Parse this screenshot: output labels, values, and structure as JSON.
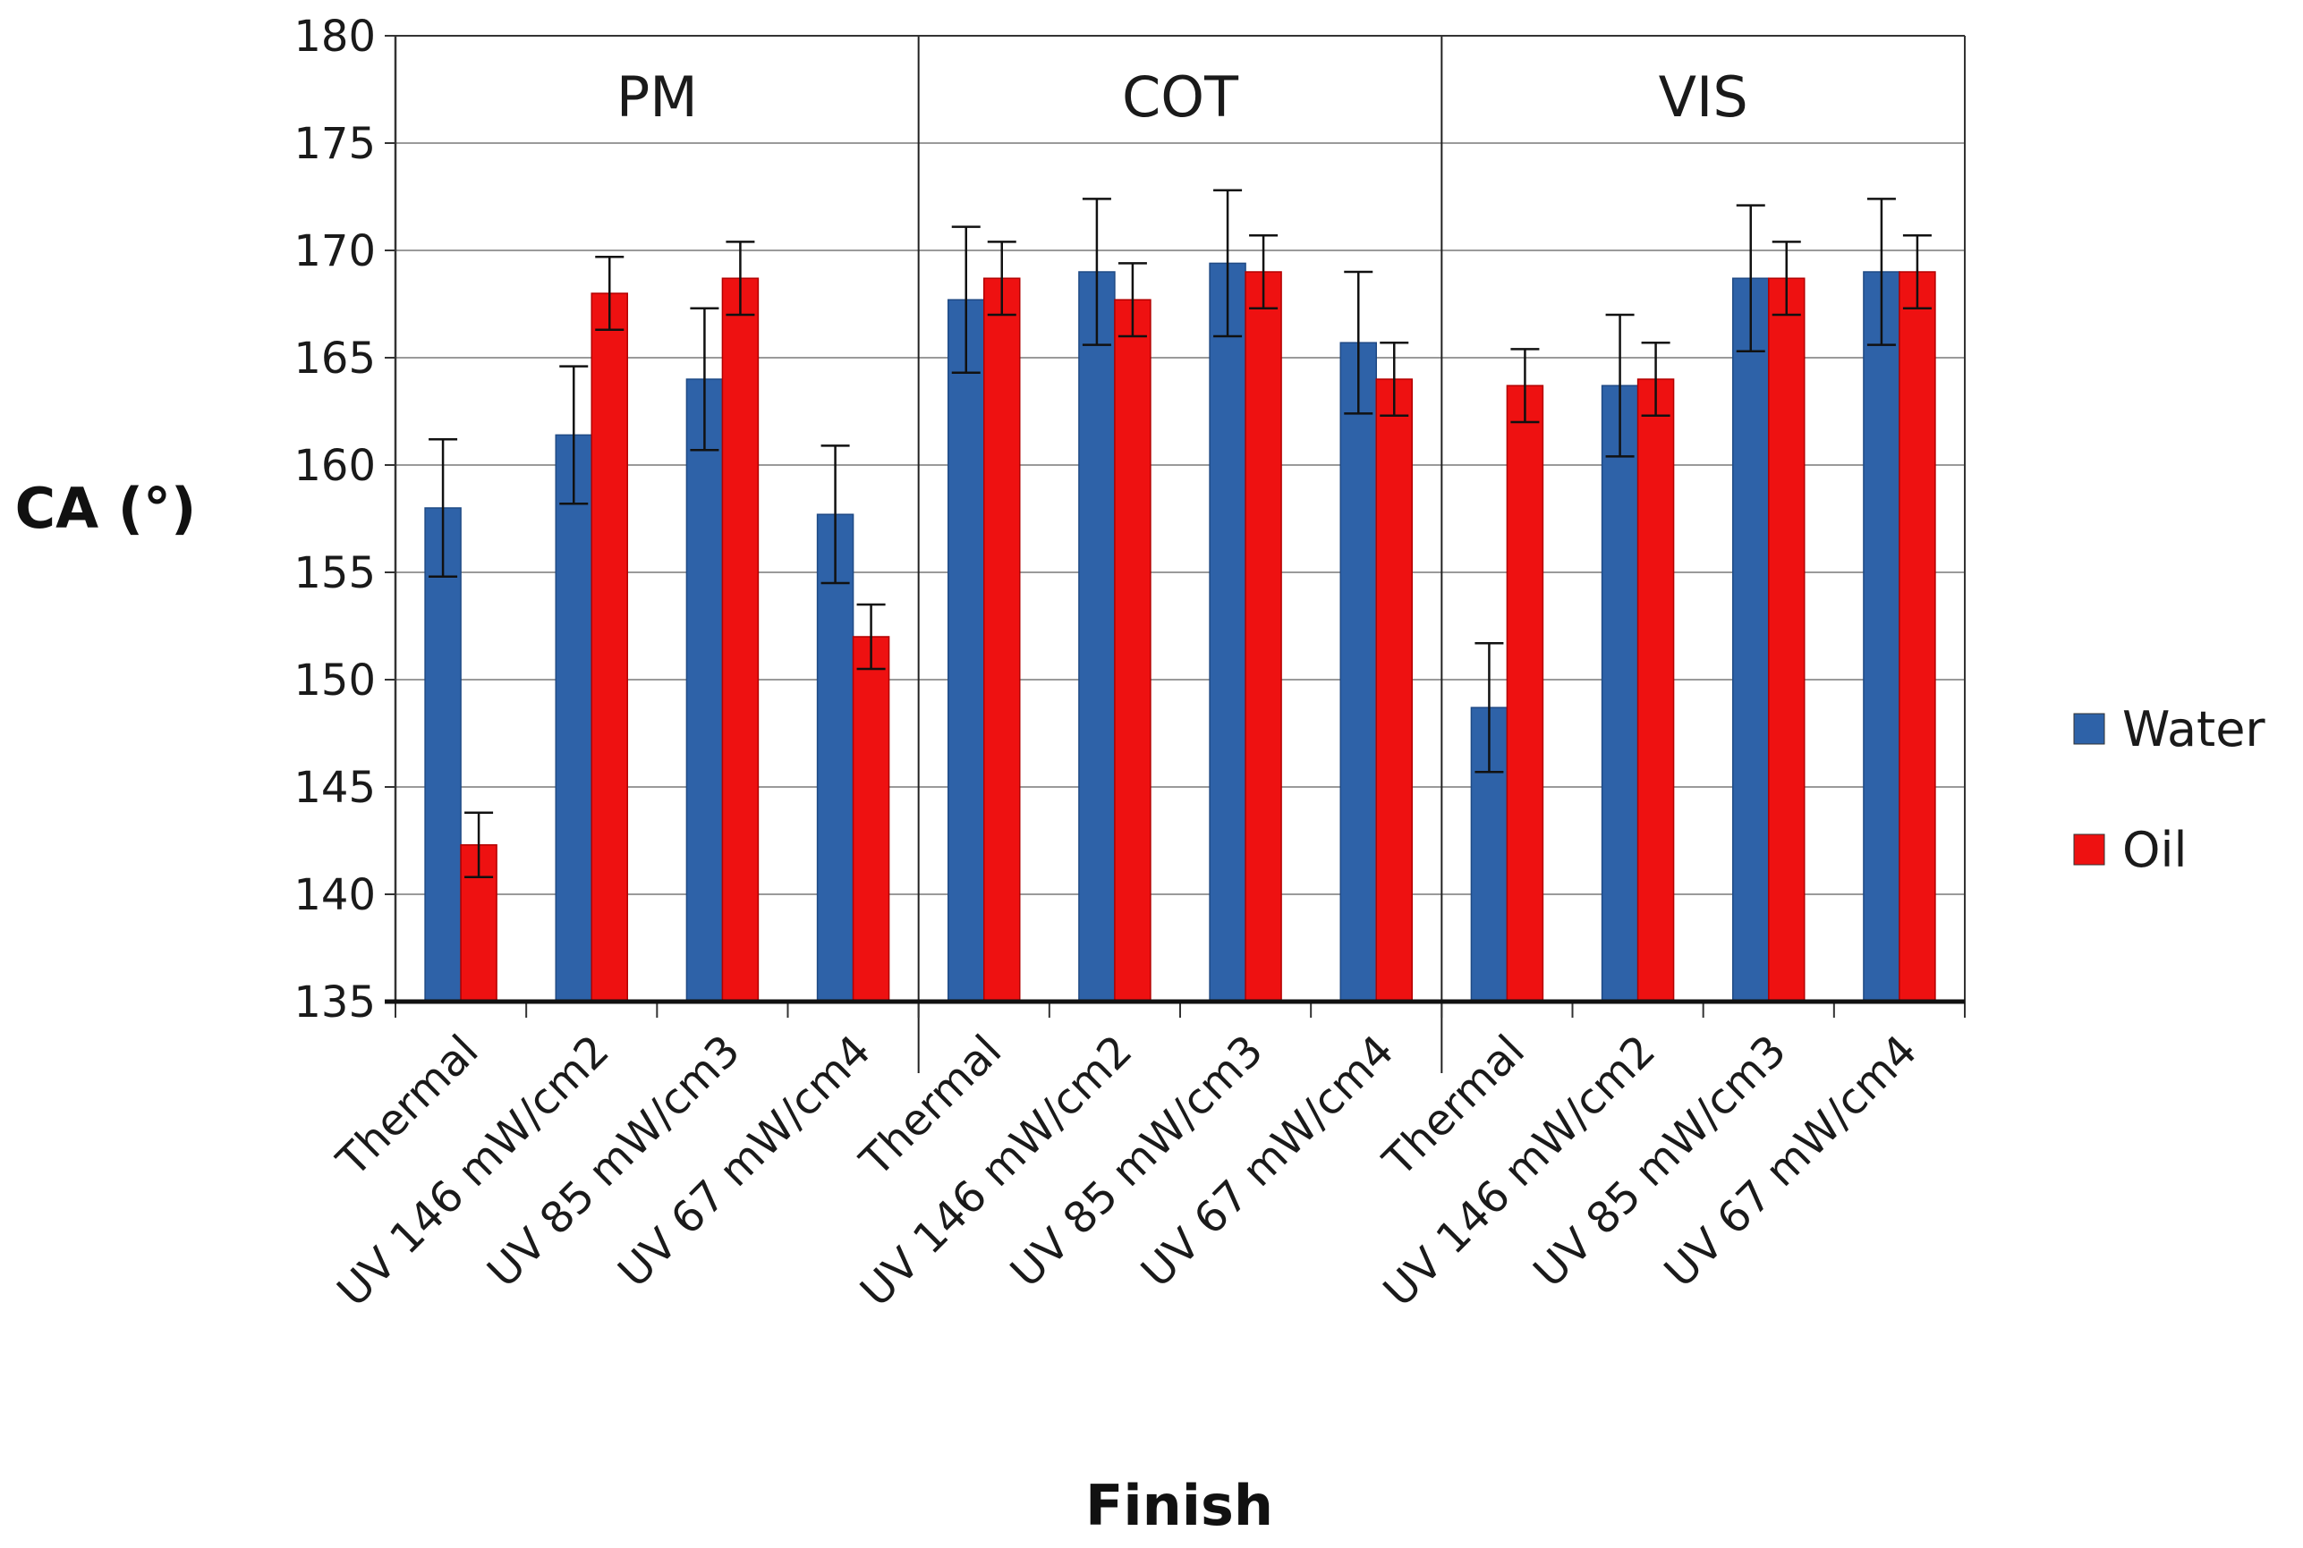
{
  "chart_data": {
    "type": "bar",
    "title": "",
    "xlabel": "Finish",
    "ylabel": "CA (°)",
    "ylim": [
      135,
      180
    ],
    "yticks": [
      135,
      140,
      145,
      150,
      155,
      160,
      165,
      170,
      175,
      180
    ],
    "grid": true,
    "legend_position": "right",
    "groups": [
      {
        "name": "PM",
        "categories": [
          "Thermal",
          "UV 146 mW/cm2",
          "UV 85 mW/cm3",
          "UV 67 mW/cm4"
        ]
      },
      {
        "name": "COT",
        "categories": [
          "Thermal",
          "UV 146 mW/cm2",
          "UV 85 mW/cm3",
          "UV 67 mW/cm4"
        ]
      },
      {
        "name": "VIS",
        "categories": [
          "Thermal",
          "UV 146 mW/cm2",
          "UV 85 mW/cm3",
          "UV 67 mW/cm4"
        ]
      }
    ],
    "series": [
      {
        "name": "Water",
        "color": "#2e62a8",
        "values": [
          158.0,
          161.4,
          164.0,
          157.7,
          167.7,
          169.0,
          169.4,
          165.7,
          148.7,
          163.7,
          168.7,
          169.0
        ],
        "errors": [
          3.2,
          3.2,
          3.3,
          3.2,
          3.4,
          3.4,
          3.4,
          3.3,
          3.0,
          3.3,
          3.4,
          3.4
        ]
      },
      {
        "name": "Oil",
        "color": "#ee1111",
        "values": [
          142.3,
          168.0,
          168.7,
          152.0,
          168.7,
          167.7,
          169.0,
          164.0,
          163.7,
          164.0,
          168.7,
          169.0
        ],
        "errors": [
          1.5,
          1.7,
          1.7,
          1.5,
          1.7,
          1.7,
          1.7,
          1.7,
          1.7,
          1.7,
          1.7,
          1.7
        ]
      }
    ]
  }
}
